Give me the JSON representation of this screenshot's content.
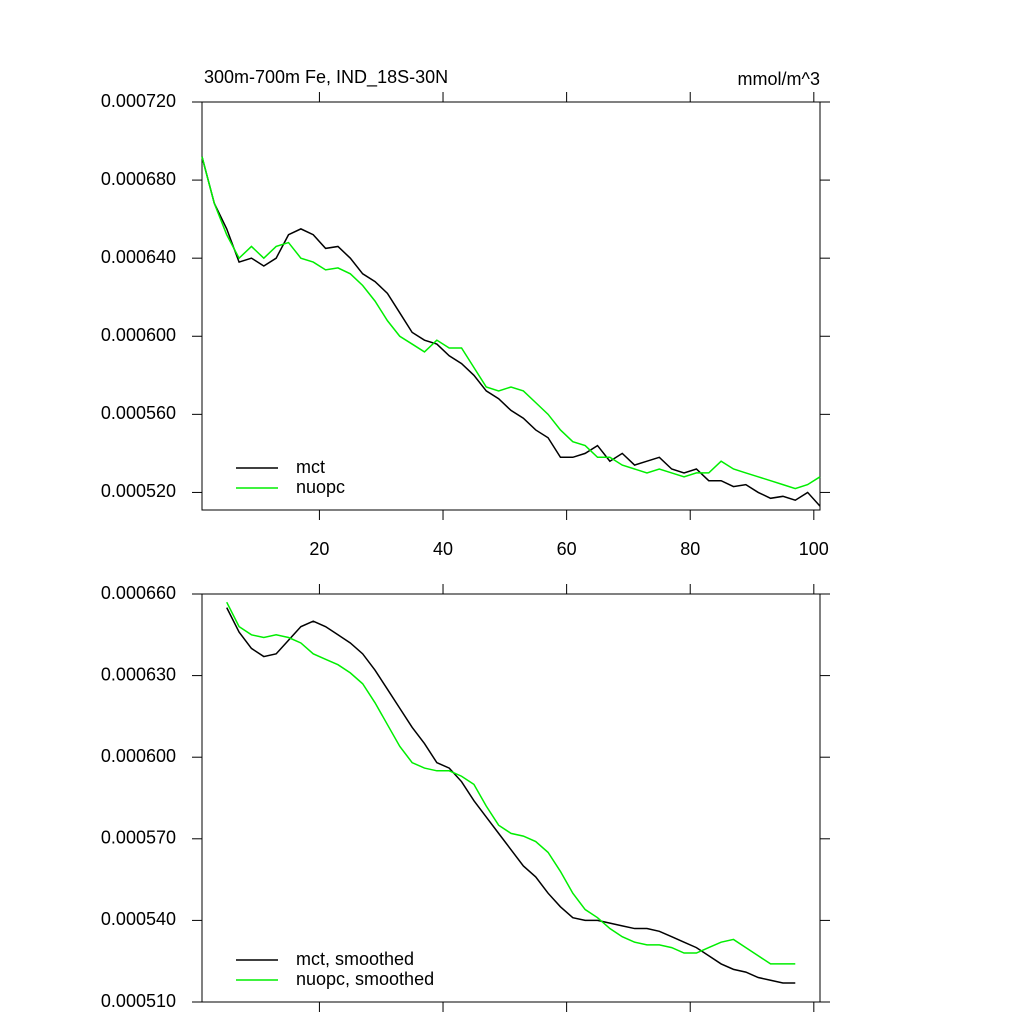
{
  "chart_data": [
    {
      "type": "line",
      "title": "300m-700m Fe, IND_18S-30N",
      "units": "mmol/m^3",
      "x": [
        1,
        3,
        5,
        7,
        9,
        11,
        13,
        15,
        17,
        19,
        21,
        23,
        25,
        27,
        29,
        31,
        33,
        35,
        37,
        39,
        41,
        43,
        45,
        47,
        49,
        51,
        53,
        55,
        57,
        59,
        61,
        63,
        65,
        67,
        69,
        71,
        73,
        75,
        77,
        79,
        81,
        83,
        85,
        87,
        89,
        91,
        93,
        95,
        97,
        99,
        101
      ],
      "series": [
        {
          "name": "mct",
          "color": "#000000",
          "values": [
            0.000692,
            0.000668,
            0.000655,
            0.000638,
            0.00064,
            0.000636,
            0.00064,
            0.000652,
            0.000655,
            0.000652,
            0.000645,
            0.000646,
            0.00064,
            0.000632,
            0.000628,
            0.000622,
            0.000612,
            0.000602,
            0.000598,
            0.000596,
            0.00059,
            0.000586,
            0.00058,
            0.000572,
            0.000568,
            0.000562,
            0.000558,
            0.000552,
            0.000548,
            0.000538,
            0.000538,
            0.00054,
            0.000544,
            0.000536,
            0.00054,
            0.000534,
            0.000536,
            0.000538,
            0.000532,
            0.00053,
            0.000532,
            0.000526,
            0.000526,
            0.000523,
            0.000524,
            0.00052,
            0.000517,
            0.000518,
            0.000516,
            0.00052,
            0.000513
          ]
        },
        {
          "name": "nuopc",
          "color": "#00ee00",
          "values": [
            0.000692,
            0.000668,
            0.000652,
            0.00064,
            0.000646,
            0.00064,
            0.000646,
            0.000648,
            0.00064,
            0.000638,
            0.000634,
            0.000635,
            0.000632,
            0.000626,
            0.000618,
            0.000608,
            0.0006,
            0.000596,
            0.000592,
            0.000598,
            0.000594,
            0.000594,
            0.000584,
            0.000574,
            0.000572,
            0.000574,
            0.000572,
            0.000566,
            0.00056,
            0.000552,
            0.000546,
            0.000544,
            0.000538,
            0.000538,
            0.000534,
            0.000532,
            0.00053,
            0.000532,
            0.00053,
            0.000528,
            0.00053,
            0.00053,
            0.000536,
            0.000532,
            0.00053,
            0.000528,
            0.000526,
            0.000524,
            0.000522,
            0.000524,
            0.000528
          ]
        }
      ],
      "xlim": [
        1,
        101
      ],
      "xticks": [
        20,
        40,
        60,
        80,
        100
      ],
      "xtick_labels": true,
      "ylim": [
        0.000511,
        0.00072
      ],
      "yticks": [
        {
          "value": 0.00052,
          "label": "0.000520"
        },
        {
          "value": 0.00056,
          "label": "0.000560"
        },
        {
          "value": 0.0006,
          "label": "0.000600"
        },
        {
          "value": 0.00064,
          "label": "0.000640"
        },
        {
          "value": 0.00068,
          "label": "0.000680"
        },
        {
          "value": 0.00072,
          "label": "0.000720"
        }
      ],
      "legend": "bottom-left"
    },
    {
      "type": "line",
      "x": [
        5,
        7,
        9,
        11,
        13,
        15,
        17,
        19,
        21,
        23,
        25,
        27,
        29,
        31,
        33,
        35,
        37,
        39,
        41,
        43,
        45,
        47,
        49,
        51,
        53,
        55,
        57,
        59,
        61,
        63,
        65,
        67,
        69,
        71,
        73,
        75,
        77,
        79,
        81,
        83,
        85,
        87,
        89,
        91,
        93,
        95,
        97
      ],
      "series": [
        {
          "name": "mct, smoothed",
          "color": "#000000",
          "values": [
            0.000655,
            0.000646,
            0.00064,
            0.000637,
            0.000638,
            0.000643,
            0.000648,
            0.00065,
            0.000648,
            0.000645,
            0.000642,
            0.000638,
            0.000632,
            0.000625,
            0.000618,
            0.000611,
            0.000605,
            0.000598,
            0.000596,
            0.000591,
            0.000584,
            0.000578,
            0.000572,
            0.000566,
            0.00056,
            0.000556,
            0.00055,
            0.000545,
            0.000541,
            0.00054,
            0.00054,
            0.000539,
            0.000538,
            0.000537,
            0.000537,
            0.000536,
            0.000534,
            0.000532,
            0.00053,
            0.000527,
            0.000524,
            0.000522,
            0.000521,
            0.000519,
            0.000518,
            0.000517,
            0.000517
          ]
        },
        {
          "name": "nuopc, smoothed",
          "color": "#00ee00",
          "values": [
            0.000657,
            0.000648,
            0.000645,
            0.000644,
            0.000645,
            0.000644,
            0.000642,
            0.000638,
            0.000636,
            0.000634,
            0.000631,
            0.000627,
            0.00062,
            0.000612,
            0.000604,
            0.000598,
            0.000596,
            0.000595,
            0.000595,
            0.000593,
            0.00059,
            0.000582,
            0.000575,
            0.000572,
            0.000571,
            0.000569,
            0.000565,
            0.000558,
            0.00055,
            0.000544,
            0.000541,
            0.000537,
            0.000534,
            0.000532,
            0.000531,
            0.000531,
            0.00053,
            0.000528,
            0.000528,
            0.00053,
            0.000532,
            0.000533,
            0.00053,
            0.000527,
            0.000524,
            0.000524,
            0.000524
          ]
        }
      ],
      "xlim": [
        1,
        101
      ],
      "xticks": [
        20,
        40,
        60,
        80,
        100
      ],
      "xtick_labels": false,
      "ylim": [
        0.00051,
        0.00066
      ],
      "yticks": [
        {
          "value": 0.00051,
          "label": "0.000510"
        },
        {
          "value": 0.00054,
          "label": "0.000540"
        },
        {
          "value": 0.00057,
          "label": "0.000570"
        },
        {
          "value": 0.0006,
          "label": "0.000600"
        },
        {
          "value": 0.00063,
          "label": "0.000630"
        },
        {
          "value": 0.00066,
          "label": "0.000660"
        }
      ],
      "legend": "bottom-left"
    }
  ]
}
